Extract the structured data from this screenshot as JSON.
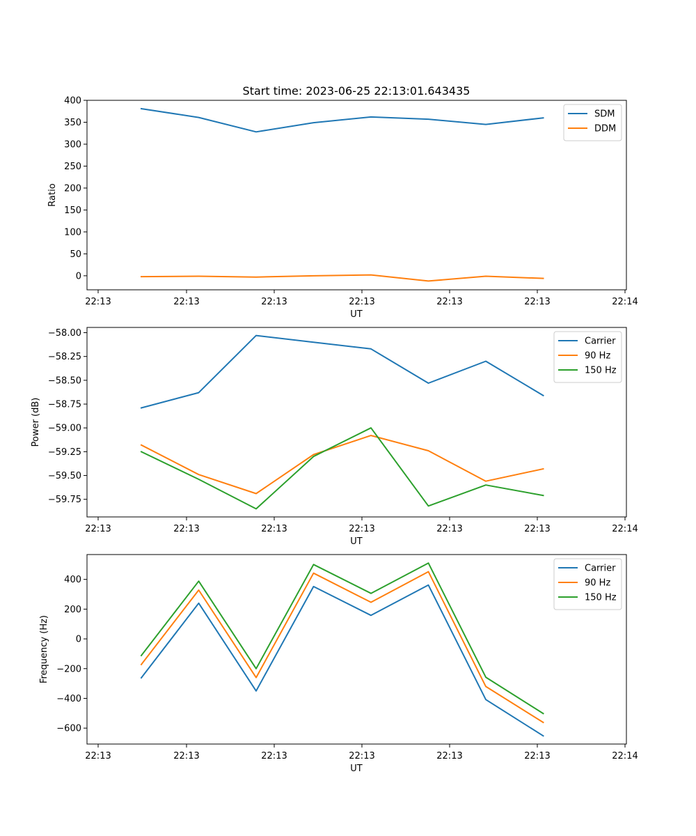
{
  "figure": {
    "title": "Start time: 2023-06-25 22:13:01.643435"
  },
  "chart_data": [
    {
      "type": "line",
      "title": "Start time: 2023-06-25 22:13:01.643435",
      "xlabel": "UT",
      "ylabel": "Ratio",
      "x_tick_labels": [
        "22:13",
        "22:13",
        "22:13",
        "22:13",
        "22:13",
        "22:13",
        "22:14"
      ],
      "y_ticks": [
        0,
        50,
        100,
        150,
        200,
        250,
        300,
        350,
        400
      ],
      "ylim": [
        -32,
        400
      ],
      "legend_position": "top-right",
      "grid": false,
      "x_index": [
        0,
        1,
        2,
        3,
        4,
        5,
        6,
        7
      ],
      "series": [
        {
          "name": "SDM",
          "color": "#1f77b4",
          "values": [
            381,
            361,
            328,
            349,
            362,
            357,
            345,
            360
          ]
        },
        {
          "name": "DDM",
          "color": "#ff7f0e",
          "values": [
            -2,
            -1,
            -3,
            0,
            2,
            -12,
            -1,
            -6
          ]
        }
      ]
    },
    {
      "type": "line",
      "title": "",
      "xlabel": "UT",
      "ylabel": "Power (dB)",
      "x_tick_labels": [
        "22:13",
        "22:13",
        "22:13",
        "22:13",
        "22:13",
        "22:13",
        "22:14"
      ],
      "y_ticks": [
        -59.75,
        -59.5,
        -59.25,
        -59.0,
        -58.75,
        -58.5,
        -58.25,
        -58.0
      ],
      "y_tick_labels": [
        "−59.75",
        "−59.50",
        "−59.25",
        "−59.00",
        "−58.75",
        "−58.50",
        "−58.25",
        "−58.00"
      ],
      "ylim": [
        -59.935,
        -57.945
      ],
      "legend_position": "top-right",
      "grid": false,
      "x_index": [
        0,
        1,
        2,
        3,
        4,
        5,
        6,
        7
      ],
      "series": [
        {
          "name": "Carrier",
          "color": "#1f77b4",
          "values": [
            -58.79,
            -58.63,
            -58.03,
            -58.1,
            -58.17,
            -58.53,
            -58.3,
            -58.66
          ]
        },
        {
          "name": "90 Hz",
          "color": "#ff7f0e",
          "values": [
            -59.18,
            -59.49,
            -59.69,
            -59.28,
            -59.08,
            -59.24,
            -59.56,
            -59.43
          ]
        },
        {
          "name": "150 Hz",
          "color": "#2ca02c",
          "values": [
            -59.25,
            -59.54,
            -59.85,
            -59.3,
            -59.0,
            -59.82,
            -59.6,
            -59.71
          ]
        }
      ]
    },
    {
      "type": "line",
      "title": "",
      "xlabel": "UT",
      "ylabel": "Frequency (Hz)",
      "x_tick_labels": [
        "22:13",
        "22:13",
        "22:13",
        "22:13",
        "22:13",
        "22:13",
        "22:14"
      ],
      "y_ticks": [
        -600,
        -400,
        -200,
        0,
        200,
        400
      ],
      "y_tick_labels": [
        "−600",
        "−400",
        "−200",
        "0",
        "200",
        "400"
      ],
      "ylim": [
        -707,
        567
      ],
      "legend_position": "top-right",
      "grid": false,
      "x_index": [
        0,
        1,
        2,
        3,
        4,
        5,
        6,
        7
      ],
      "series": [
        {
          "name": "Carrier",
          "color": "#1f77b4",
          "values": [
            -262,
            240,
            -350,
            352,
            158,
            362,
            -408,
            -652
          ]
        },
        {
          "name": "90 Hz",
          "color": "#ff7f0e",
          "values": [
            -172,
            328,
            -260,
            442,
            246,
            452,
            -320,
            -562
          ]
        },
        {
          "name": "150 Hz",
          "color": "#2ca02c",
          "values": [
            -112,
            388,
            -200,
            500,
            306,
            510,
            -258,
            -502
          ]
        }
      ]
    }
  ]
}
